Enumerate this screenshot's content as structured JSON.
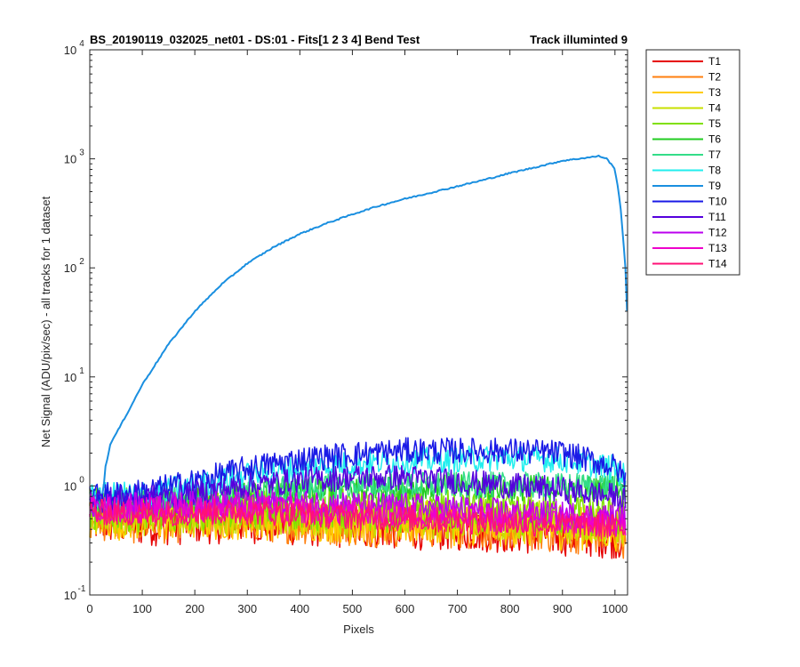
{
  "chart_data": {
    "type": "line",
    "title": "BS_20190119_032025_net01 - DS:01 - Fits[1  2  3  4]    Bend Test",
    "title_right": "Track illuminted 9",
    "xlabel": "Pixels",
    "ylabel": "Net Signal (ADU/pix/sec) - all tracks for 1 dataset",
    "xlim": [
      0,
      1024
    ],
    "ylim": [
      0.1,
      10000
    ],
    "yscale": "log",
    "grid": false,
    "legend_position": "outside-right",
    "x_ticks": [
      "0",
      "100",
      "200",
      "300",
      "400",
      "500",
      "600",
      "700",
      "800",
      "900",
      "1000"
    ],
    "y_ticks": [
      {
        "base": "10",
        "exp": "-1"
      },
      {
        "base": "10",
        "exp": "0"
      },
      {
        "base": "10",
        "exp": "1"
      },
      {
        "base": "10",
        "exp": "2"
      },
      {
        "base": "10",
        "exp": "3"
      },
      {
        "base": "10",
        "exp": "4"
      }
    ],
    "series": [
      {
        "name": "T1",
        "color": "#e60000",
        "values": [
          [
            0,
            0.48
          ],
          [
            100,
            0.44
          ],
          [
            200,
            0.46
          ],
          [
            300,
            0.47
          ],
          [
            400,
            0.44
          ],
          [
            500,
            0.42
          ],
          [
            600,
            0.41
          ],
          [
            700,
            0.4
          ],
          [
            800,
            0.38
          ],
          [
            900,
            0.36
          ],
          [
            1000,
            0.34
          ],
          [
            1020,
            0.32
          ]
        ]
      },
      {
        "name": "T2",
        "color": "#ff7f0e",
        "values": [
          [
            0,
            0.5
          ],
          [
            100,
            0.46
          ],
          [
            200,
            0.48
          ],
          [
            300,
            0.49
          ],
          [
            400,
            0.46
          ],
          [
            500,
            0.44
          ],
          [
            600,
            0.43
          ],
          [
            700,
            0.42
          ],
          [
            800,
            0.4
          ],
          [
            900,
            0.38
          ],
          [
            1000,
            0.36
          ],
          [
            1020,
            0.34
          ]
        ]
      },
      {
        "name": "T3",
        "color": "#ffcc00",
        "values": [
          [
            0,
            0.52
          ],
          [
            100,
            0.49
          ],
          [
            200,
            0.5
          ],
          [
            300,
            0.51
          ],
          [
            400,
            0.49
          ],
          [
            500,
            0.47
          ],
          [
            600,
            0.46
          ],
          [
            700,
            0.45
          ],
          [
            800,
            0.43
          ],
          [
            900,
            0.41
          ],
          [
            1000,
            0.4
          ],
          [
            1020,
            0.38
          ]
        ]
      },
      {
        "name": "T4",
        "color": "#c8e000",
        "values": [
          [
            0,
            0.58
          ],
          [
            100,
            0.55
          ],
          [
            200,
            0.56
          ],
          [
            300,
            0.57
          ],
          [
            400,
            0.55
          ],
          [
            500,
            0.53
          ],
          [
            600,
            0.52
          ],
          [
            700,
            0.51
          ],
          [
            800,
            0.49
          ],
          [
            900,
            0.47
          ],
          [
            1000,
            0.45
          ],
          [
            1020,
            0.43
          ]
        ]
      },
      {
        "name": "T5",
        "color": "#80e000",
        "values": [
          [
            0,
            0.62
          ],
          [
            100,
            0.6
          ],
          [
            200,
            0.62
          ],
          [
            300,
            0.63
          ],
          [
            400,
            0.62
          ],
          [
            500,
            0.6
          ],
          [
            600,
            0.59
          ],
          [
            700,
            0.58
          ],
          [
            800,
            0.56
          ],
          [
            900,
            0.55
          ],
          [
            1000,
            0.53
          ],
          [
            1020,
            0.5
          ]
        ]
      },
      {
        "name": "T6",
        "color": "#22cc22",
        "values": [
          [
            0,
            0.68
          ],
          [
            100,
            0.7
          ],
          [
            200,
            0.75
          ],
          [
            300,
            0.82
          ],
          [
            400,
            0.88
          ],
          [
            500,
            0.92
          ],
          [
            600,
            0.95
          ],
          [
            700,
            0.96
          ],
          [
            800,
            0.96
          ],
          [
            900,
            0.95
          ],
          [
            1000,
            0.97
          ],
          [
            1020,
            0.95
          ]
        ]
      },
      {
        "name": "T7",
        "color": "#33dd88",
        "values": [
          [
            0,
            0.72
          ],
          [
            100,
            0.74
          ],
          [
            200,
            0.8
          ],
          [
            300,
            0.88
          ],
          [
            400,
            0.95
          ],
          [
            500,
            1.0
          ],
          [
            600,
            1.02
          ],
          [
            700,
            1.02
          ],
          [
            800,
            1.02
          ],
          [
            900,
            1.0
          ],
          [
            1000,
            1.02
          ],
          [
            1020,
            1.0
          ]
        ]
      },
      {
        "name": "T8",
        "color": "#22eeee",
        "values": [
          [
            0,
            0.8
          ],
          [
            100,
            0.85
          ],
          [
            200,
            1.0
          ],
          [
            300,
            1.25
          ],
          [
            400,
            1.45
          ],
          [
            500,
            1.6
          ],
          [
            600,
            1.7
          ],
          [
            700,
            1.75
          ],
          [
            800,
            1.8
          ],
          [
            900,
            1.75
          ],
          [
            1000,
            1.45
          ],
          [
            1020,
            1.2
          ]
        ]
      },
      {
        "name": "T9",
        "color": "#1a8fe0",
        "values": [
          [
            0,
            0.8
          ],
          [
            25,
            0.85
          ],
          [
            30,
            1.5
          ],
          [
            40,
            2.5
          ],
          [
            50,
            3.0
          ],
          [
            75,
            5.0
          ],
          [
            100,
            8.5
          ],
          [
            150,
            20
          ],
          [
            200,
            40
          ],
          [
            250,
            70
          ],
          [
            300,
            110
          ],
          [
            350,
            155
          ],
          [
            400,
            205
          ],
          [
            450,
            255
          ],
          [
            500,
            310
          ],
          [
            550,
            370
          ],
          [
            600,
            430
          ],
          [
            650,
            490
          ],
          [
            700,
            560
          ],
          [
            750,
            640
          ],
          [
            800,
            740
          ],
          [
            850,
            840
          ],
          [
            900,
            960
          ],
          [
            950,
            1030
          ],
          [
            970,
            1060
          ],
          [
            985,
            1000
          ],
          [
            1000,
            800
          ],
          [
            1010,
            400
          ],
          [
            1020,
            100
          ],
          [
            1023,
            40
          ]
        ]
      },
      {
        "name": "T10",
        "color": "#1a1ae6",
        "values": [
          [
            0,
            0.8
          ],
          [
            100,
            0.88
          ],
          [
            200,
            1.1
          ],
          [
            300,
            1.45
          ],
          [
            400,
            1.75
          ],
          [
            500,
            1.95
          ],
          [
            600,
            2.1
          ],
          [
            700,
            2.1
          ],
          [
            800,
            2.1
          ],
          [
            900,
            2.0
          ],
          [
            1000,
            1.5
          ],
          [
            1020,
            1.15
          ]
        ]
      },
      {
        "name": "T11",
        "color": "#5500dd",
        "values": [
          [
            0,
            0.75
          ],
          [
            100,
            0.77
          ],
          [
            200,
            0.85
          ],
          [
            300,
            1.0
          ],
          [
            400,
            1.12
          ],
          [
            500,
            1.2
          ],
          [
            600,
            1.2
          ],
          [
            700,
            1.1
          ],
          [
            800,
            1.0
          ],
          [
            900,
            0.92
          ],
          [
            1000,
            0.8
          ],
          [
            1020,
            0.72
          ]
        ]
      },
      {
        "name": "T12",
        "color": "#bb00ee",
        "values": [
          [
            0,
            0.65
          ],
          [
            100,
            0.66
          ],
          [
            200,
            0.68
          ],
          [
            300,
            0.7
          ],
          [
            400,
            0.7
          ],
          [
            500,
            0.68
          ],
          [
            600,
            0.66
          ],
          [
            700,
            0.62
          ],
          [
            800,
            0.58
          ],
          [
            900,
            0.55
          ],
          [
            1000,
            0.52
          ],
          [
            1020,
            0.5
          ]
        ]
      },
      {
        "name": "T13",
        "color": "#ee00cc",
        "values": [
          [
            0,
            0.62
          ],
          [
            100,
            0.6
          ],
          [
            200,
            0.62
          ],
          [
            300,
            0.63
          ],
          [
            400,
            0.6
          ],
          [
            500,
            0.57
          ],
          [
            600,
            0.55
          ],
          [
            700,
            0.52
          ],
          [
            800,
            0.49
          ],
          [
            900,
            0.47
          ],
          [
            1000,
            0.45
          ],
          [
            1020,
            0.43
          ]
        ]
      },
      {
        "name": "T14",
        "color": "#ff1177",
        "values": [
          [
            0,
            0.58
          ],
          [
            100,
            0.55
          ],
          [
            200,
            0.57
          ],
          [
            300,
            0.58
          ],
          [
            400,
            0.55
          ],
          [
            500,
            0.52
          ],
          [
            600,
            0.5
          ],
          [
            700,
            0.48
          ],
          [
            800,
            0.46
          ],
          [
            900,
            0.44
          ],
          [
            1000,
            0.42
          ],
          [
            1020,
            0.4
          ]
        ]
      }
    ]
  }
}
